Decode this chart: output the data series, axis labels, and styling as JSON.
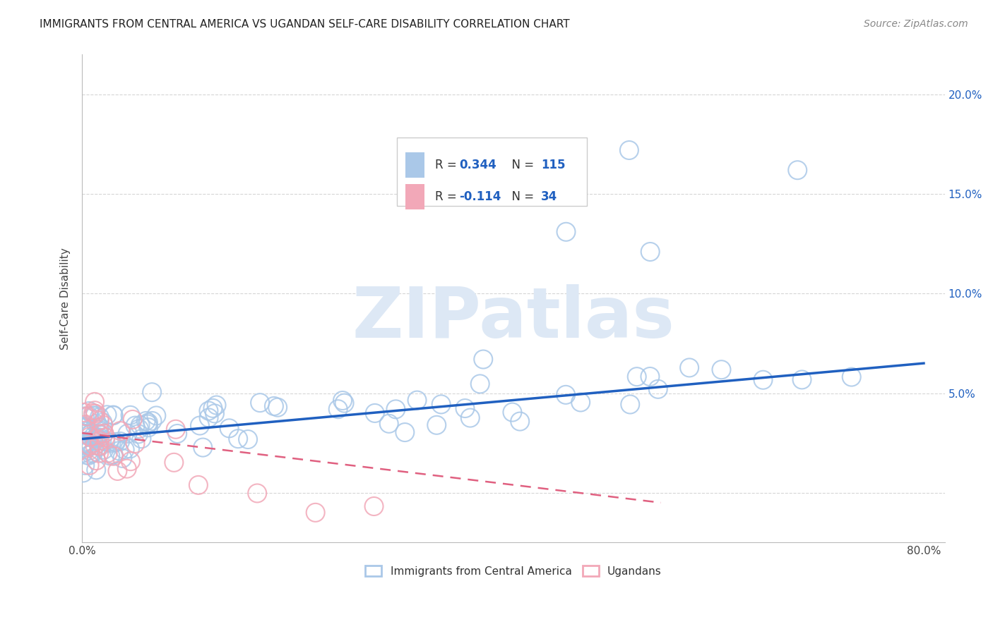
{
  "title": "IMMIGRANTS FROM CENTRAL AMERICA VS UGANDAN SELF-CARE DISABILITY CORRELATION CHART",
  "source": "Source: ZipAtlas.com",
  "ylabel": "Self-Care Disability",
  "xlim": [
    0.0,
    0.82
  ],
  "ylim": [
    -0.025,
    0.22
  ],
  "ytick_positions": [
    0.0,
    0.05,
    0.1,
    0.15,
    0.2
  ],
  "ytick_labels": [
    "",
    "5.0%",
    "10.0%",
    "15.0%",
    "20.0%"
  ],
  "xtick_positions": [
    0.0,
    0.1,
    0.2,
    0.3,
    0.4,
    0.5,
    0.6,
    0.7,
    0.8
  ],
  "xtick_labels": [
    "0.0%",
    "",
    "",
    "",
    "",
    "",
    "",
    "",
    "80.0%"
  ],
  "blue_r": "0.344",
  "blue_n": "115",
  "pink_r": "-0.114",
  "pink_n": "34",
  "blue_color": "#aac8e8",
  "pink_color": "#f2a8b8",
  "blue_line_color": "#2060c0",
  "pink_line_color": "#e06080",
  "watermark": "ZIPatlas",
  "watermark_color": "#dde8f5",
  "legend_label_blue": "Immigrants from Central America",
  "legend_label_pink": "Ugandans",
  "blue_trend_x": [
    0.0,
    0.8
  ],
  "blue_trend_y": [
    0.027,
    0.065
  ],
  "pink_trend_x": [
    0.0,
    0.55
  ],
  "pink_trend_y": [
    0.03,
    -0.005
  ],
  "grid_color": "#cccccc",
  "title_color": "#222222",
  "source_color": "#888888",
  "tick_color": "#2060c0"
}
